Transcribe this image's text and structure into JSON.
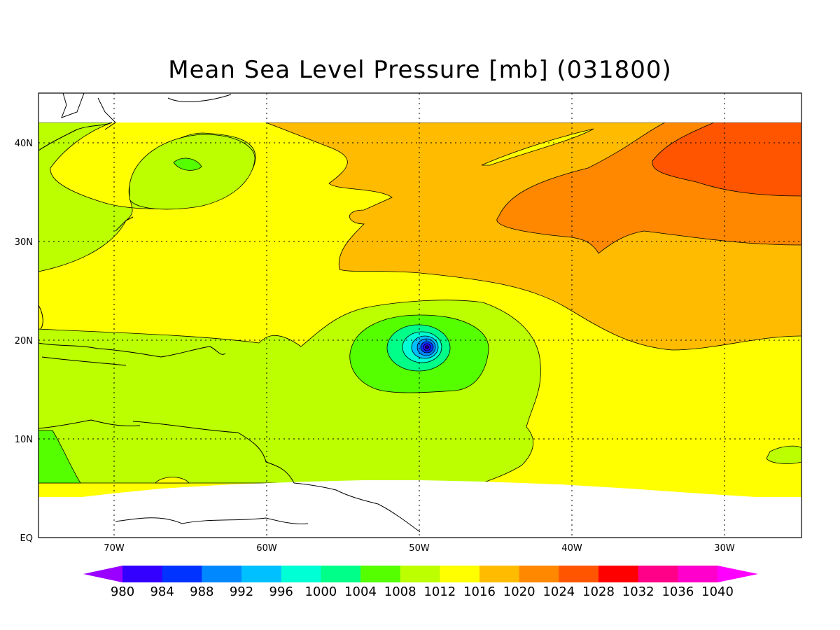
{
  "title": "Mean Sea Level Pressure [mb] (031800)",
  "lon_ticks": [
    "70W",
    "60W",
    "50W",
    "40W",
    "30W"
  ],
  "lat_ticks": [
    "EQ",
    "10N",
    "20N",
    "30N",
    "40N"
  ],
  "colorbar": {
    "labels": [
      "980",
      "984",
      "988",
      "992",
      "996",
      "1000",
      "1004",
      "1008",
      "1012",
      "1016",
      "1020",
      "1024",
      "1028",
      "1032",
      "1036",
      "1040"
    ],
    "colors": [
      "#9900ff",
      "#3300ff",
      "#0033ff",
      "#0088ff",
      "#00c0ff",
      "#00ffd5",
      "#00ff88",
      "#55ff00",
      "#bbff00",
      "#ffff00",
      "#ffbb00",
      "#ff8800",
      "#ff5500",
      "#ff0000",
      "#ff0088",
      "#ff00cc",
      "#ff00ff"
    ]
  },
  "chart_data": {
    "type": "heatmap",
    "title": "Mean Sea Level Pressure [mb] (031800)",
    "units": "mb",
    "x_ticks": [
      "70W",
      "60W",
      "50W",
      "40W",
      "30W"
    ],
    "y_ticks": [
      "EQ",
      "10N",
      "20N",
      "30N",
      "40N"
    ],
    "lon_range": [
      -75,
      -25
    ],
    "lat_range": [
      0,
      45
    ],
    "contour_levels": [
      980,
      984,
      988,
      992,
      996,
      1000,
      1004,
      1008,
      1012,
      1016,
      1020,
      1024,
      1028,
      1032,
      1036,
      1040
    ],
    "features": [
      {
        "type": "low",
        "center_lon": -49.5,
        "center_lat": 19,
        "min_pressure_range": [
          980,
          984
        ]
      },
      {
        "type": "high",
        "region_lon": [
          -35,
          -25
        ],
        "region_lat": [
          33,
          42
        ],
        "pressure_range": [
          1024,
          1028
        ]
      },
      {
        "type": "relative_low",
        "center_lon": -65,
        "center_lat": 38,
        "pressure_range": [
          1004,
          1008
        ]
      }
    ]
  }
}
